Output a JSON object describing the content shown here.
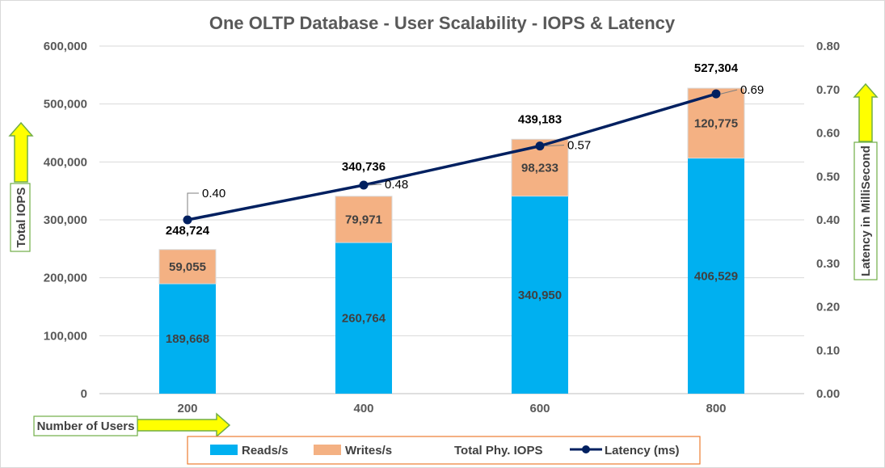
{
  "chart_data": {
    "type": "bar",
    "title": "One OLTP Database - User Scalability - IOPS & Latency",
    "categories": [
      "200",
      "400",
      "600",
      "800"
    ],
    "xlabel": "Number of Users",
    "ylabel": "Total IOPS",
    "y2label": "Latency in MilliSecond",
    "ylim": [
      0,
      600000
    ],
    "y2lim": [
      0,
      0.8
    ],
    "yticks": [
      "0",
      "100,000",
      "200,000",
      "300,000",
      "400,000",
      "500,000",
      "600,000"
    ],
    "y2ticks": [
      "0.00",
      "0.10",
      "0.20",
      "0.30",
      "0.40",
      "0.50",
      "0.60",
      "0.70",
      "0.80"
    ],
    "stacked": true,
    "grid": true,
    "legend_position": "bottom",
    "series": [
      {
        "name": "Reads/s",
        "kind": "bar",
        "color": "#00b0f0",
        "values": [
          189668,
          260764,
          340950,
          406529
        ],
        "labels": [
          "189,668",
          "260,764",
          "340,950",
          "406,529"
        ]
      },
      {
        "name": "Writes/s",
        "kind": "bar",
        "color": "#f4b183",
        "values": [
          59055,
          79971,
          98233,
          120775
        ],
        "labels": [
          "59,055",
          "79,971",
          "98,233",
          "120,775"
        ]
      },
      {
        "name": "Total Phy. IOPS",
        "kind": "total",
        "values": [
          248724,
          340736,
          439183,
          527304
        ],
        "labels": [
          "248,724",
          "340,736",
          "439,183",
          "527,304"
        ]
      },
      {
        "name": "Latency (ms)",
        "kind": "line",
        "axis": "right",
        "color": "#002060",
        "values": [
          0.4,
          0.48,
          0.57,
          0.69
        ],
        "labels": [
          "0.40",
          "0.48",
          "0.57",
          "0.69"
        ]
      }
    ]
  }
}
